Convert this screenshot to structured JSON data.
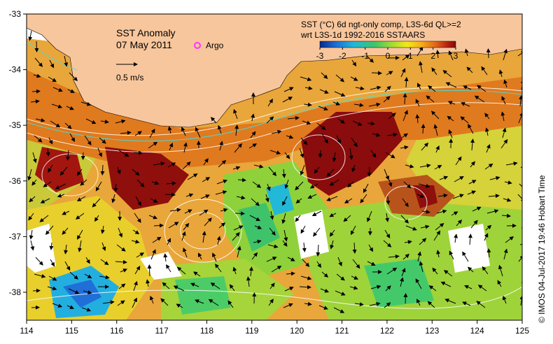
{
  "map": {
    "title": "SST Anomaly",
    "date": "07 May 2011",
    "legend_argo": "Argo",
    "scale_label": "0.5 m/s",
    "product_line1": "SST (°C) 6d ngt-only comp, L3S-6d QL>=2",
    "product_line2": "wrt L3S-1d 1992-2016 SSTAARS",
    "credit": "© IMOS 04-Jul-2017 19:46 Hobart Time",
    "lon_ticks": [
      "114",
      "115",
      "116",
      "117",
      "118",
      "119",
      "120",
      "121",
      "122",
      "123",
      "124",
      "125"
    ],
    "lat_ticks": [
      "-33",
      "-34",
      "-35",
      "-36",
      "-37",
      "-38"
    ],
    "colorbar_ticks": [
      "-3",
      "-2",
      "-1",
      "0",
      "1",
      "2",
      "3"
    ],
    "colorbar_colors": [
      "#0a2a8c",
      "#1f6fd6",
      "#22b8d8",
      "#3fc36a",
      "#9bd93a",
      "#f2e81a",
      "#f5b21a",
      "#e0681a",
      "#b11a10",
      "#7e0c0c"
    ],
    "land_color": "#f8c69c",
    "argo_color": "#ff33ff"
  }
}
